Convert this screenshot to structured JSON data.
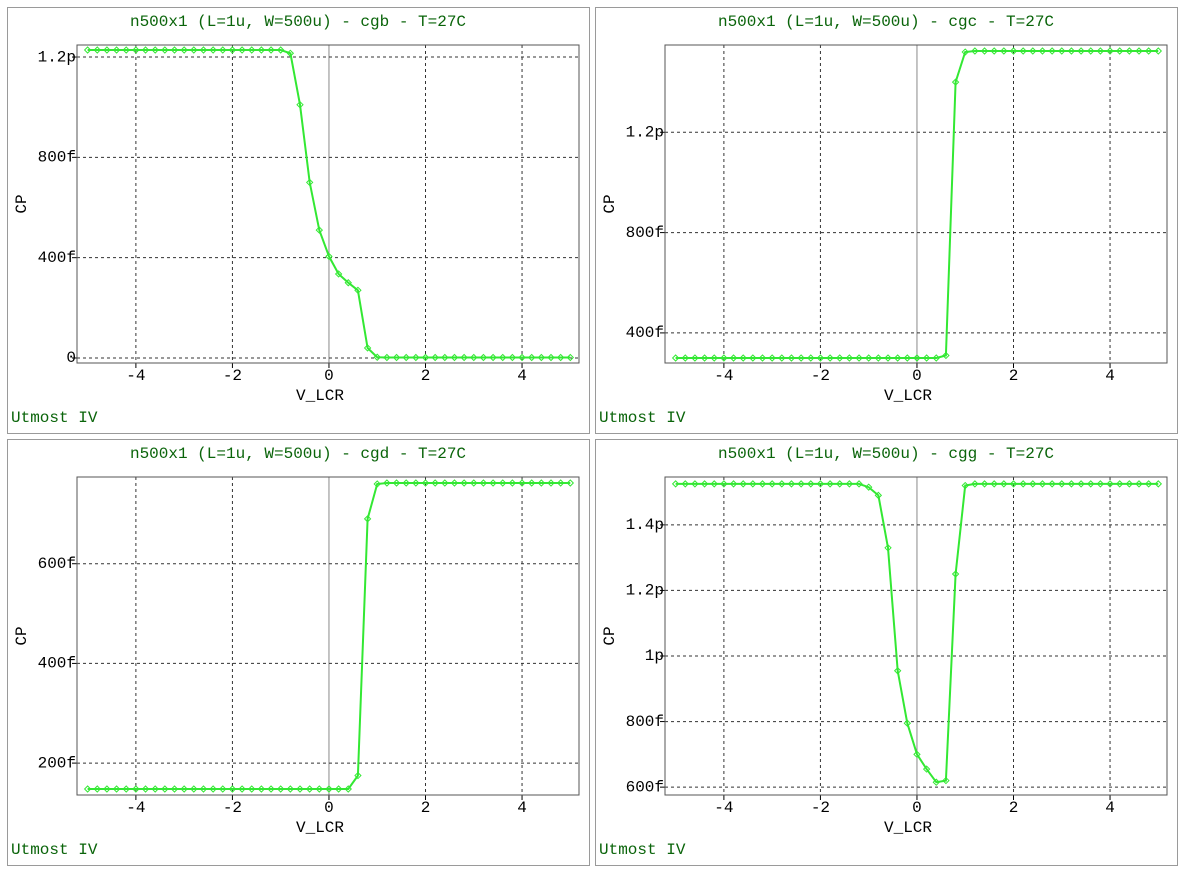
{
  "chart_data": [
    {
      "type": "line",
      "title": "n500x1 (L=1u, W=500u) - cgb - T=27C",
      "xlabel": "V_LCR",
      "ylabel": "CP",
      "annotation": "Utmost IV",
      "color": "#33e833",
      "grid": true,
      "x": [
        -5,
        -4.8,
        -4.6,
        -4.4,
        -4.2,
        -4,
        -3.8,
        -3.6,
        -3.4,
        -3.2,
        -3,
        -2.8,
        -2.6,
        -2.4,
        -2.2,
        -2,
        -1.8,
        -1.6,
        -1.4,
        -1.2,
        -1,
        -0.8,
        -0.6,
        -0.4,
        -0.2,
        0,
        0.2,
        0.4,
        0.6,
        0.8,
        1,
        1.2,
        1.4,
        1.6,
        1.8,
        2,
        2.2,
        2.4,
        2.6,
        2.8,
        3,
        3.2,
        3.4,
        3.6,
        3.8,
        4,
        4.2,
        4.4,
        4.6,
        4.8,
        5
      ],
      "values": [
        1228,
        1228,
        1228,
        1228,
        1228,
        1228,
        1228,
        1228,
        1228,
        1228,
        1228,
        1228,
        1228,
        1228,
        1228,
        1228,
        1228,
        1228,
        1228,
        1228,
        1228,
        1215,
        1010,
        700,
        510,
        405,
        335,
        300,
        270,
        40,
        3,
        2,
        2,
        2,
        2,
        2,
        2,
        2,
        2,
        2,
        2,
        2,
        2,
        2,
        2,
        2,
        2,
        2,
        2,
        2,
        2
      ],
      "xlim": [
        -5.22,
        5.18
      ],
      "xticks": [
        -4,
        -2,
        0,
        2,
        4
      ],
      "ylim": [
        -20,
        1248
      ],
      "yticks": [
        0,
        {
          "value": 400,
          "label": "400f"
        },
        {
          "value": 800,
          "label": "800f"
        },
        {
          "value": 1200,
          "label": "1.2p"
        }
      ]
    },
    {
      "type": "line",
      "title": "n500x1 (L=1u, W=500u) - cgc - T=27C",
      "xlabel": "V_LCR",
      "ylabel": "CP",
      "annotation": "Utmost IV",
      "color": "#33e833",
      "grid": true,
      "x": [
        -5,
        -4.8,
        -4.6,
        -4.4,
        -4.2,
        -4,
        -3.8,
        -3.6,
        -3.4,
        -3.2,
        -3,
        -2.8,
        -2.6,
        -2.4,
        -2.2,
        -2,
        -1.8,
        -1.6,
        -1.4,
        -1.2,
        -1,
        -0.8,
        -0.6,
        -0.4,
        -0.2,
        0,
        0.2,
        0.4,
        0.6,
        0.8,
        1,
        1.2,
        1.4,
        1.6,
        1.8,
        2,
        2.2,
        2.4,
        2.6,
        2.8,
        3,
        3.2,
        3.4,
        3.6,
        3.8,
        4,
        4.2,
        4.4,
        4.6,
        4.8,
        5
      ],
      "values": [
        300,
        300,
        300,
        300,
        300,
        300,
        300,
        300,
        300,
        300,
        300,
        300,
        300,
        300,
        300,
        300,
        300,
        300,
        300,
        300,
        300,
        300,
        300,
        300,
        300,
        300,
        300,
        300,
        310,
        1400,
        1520,
        1524,
        1524,
        1524,
        1524,
        1524,
        1524,
        1524,
        1524,
        1524,
        1524,
        1524,
        1524,
        1524,
        1524,
        1524,
        1524,
        1524,
        1524,
        1524,
        1524
      ],
      "xlim": [
        -5.22,
        5.18
      ],
      "xticks": [
        -4,
        -2,
        0,
        2,
        4
      ],
      "ylim": [
        280,
        1548
      ],
      "yticks": [
        {
          "value": 400,
          "label": "400f"
        },
        {
          "value": 800,
          "label": "800f"
        },
        {
          "value": 1200,
          "label": "1.2p"
        }
      ]
    },
    {
      "type": "line",
      "title": "n500x1 (L=1u, W=500u) - cgd - T=27C",
      "xlabel": "V_LCR",
      "ylabel": "CP",
      "annotation": "Utmost IV",
      "color": "#33e833",
      "grid": true,
      "x": [
        -5,
        -4.8,
        -4.6,
        -4.4,
        -4.2,
        -4,
        -3.8,
        -3.6,
        -3.4,
        -3.2,
        -3,
        -2.8,
        -2.6,
        -2.4,
        -2.2,
        -2,
        -1.8,
        -1.6,
        -1.4,
        -1.2,
        -1,
        -0.8,
        -0.6,
        -0.4,
        -0.2,
        0,
        0.2,
        0.4,
        0.6,
        0.8,
        1,
        1.2,
        1.4,
        1.6,
        1.8,
        2,
        2.2,
        2.4,
        2.6,
        2.8,
        3,
        3.2,
        3.4,
        3.6,
        3.8,
        4,
        4.2,
        4.4,
        4.6,
        4.8,
        5
      ],
      "values": [
        148,
        148,
        148,
        148,
        148,
        148,
        148,
        148,
        148,
        148,
        148,
        148,
        148,
        148,
        148,
        148,
        148,
        148,
        148,
        148,
        148,
        148,
        148,
        148,
        148,
        148,
        148,
        148,
        175,
        690,
        760,
        762,
        762,
        762,
        762,
        762,
        762,
        762,
        762,
        762,
        762,
        762,
        762,
        762,
        762,
        762,
        762,
        762,
        762,
        762,
        762
      ],
      "xlim": [
        -5.22,
        5.18
      ],
      "xticks": [
        -4,
        -2,
        0,
        2,
        4
      ],
      "ylim": [
        136,
        774
      ],
      "yticks": [
        {
          "value": 200,
          "label": "200f"
        },
        {
          "value": 400,
          "label": "400f"
        },
        {
          "value": 600,
          "label": "600f"
        }
      ]
    },
    {
      "type": "line",
      "title": "n500x1 (L=1u, W=500u) - cgg - T=27C",
      "xlabel": "V_LCR",
      "ylabel": "CP",
      "annotation": "Utmost IV",
      "color": "#33e833",
      "grid": true,
      "x": [
        -5,
        -4.8,
        -4.6,
        -4.4,
        -4.2,
        -4,
        -3.8,
        -3.6,
        -3.4,
        -3.2,
        -3,
        -2.8,
        -2.6,
        -2.4,
        -2.2,
        -2,
        -1.8,
        -1.6,
        -1.4,
        -1.2,
        -1,
        -0.8,
        -0.6,
        -0.4,
        -0.2,
        0,
        0.2,
        0.4,
        0.6,
        0.8,
        1,
        1.2,
        1.4,
        1.6,
        1.8,
        2,
        2.2,
        2.4,
        2.6,
        2.8,
        3,
        3.2,
        3.4,
        3.6,
        3.8,
        4,
        4.2,
        4.4,
        4.6,
        4.8,
        5
      ],
      "values": [
        1525,
        1525,
        1525,
        1525,
        1525,
        1525,
        1525,
        1525,
        1525,
        1525,
        1525,
        1525,
        1525,
        1525,
        1525,
        1525,
        1525,
        1525,
        1525,
        1525,
        1515,
        1490,
        1330,
        955,
        795,
        700,
        655,
        615,
        620,
        1250,
        1520,
        1525,
        1525,
        1525,
        1525,
        1525,
        1525,
        1525,
        1525,
        1525,
        1525,
        1525,
        1525,
        1525,
        1525,
        1525,
        1525,
        1525,
        1525,
        1525,
        1525
      ],
      "xlim": [
        -5.22,
        5.18
      ],
      "xticks": [
        -4,
        -2,
        0,
        2,
        4
      ],
      "ylim": [
        576,
        1546
      ],
      "yticks": [
        {
          "value": 600,
          "label": "600f"
        },
        {
          "value": 800,
          "label": "800f"
        },
        {
          "value": 1000,
          "label": "1p"
        },
        {
          "value": 1200,
          "label": "1.2p"
        },
        {
          "value": 1400,
          "label": "1.4p"
        }
      ]
    }
  ]
}
